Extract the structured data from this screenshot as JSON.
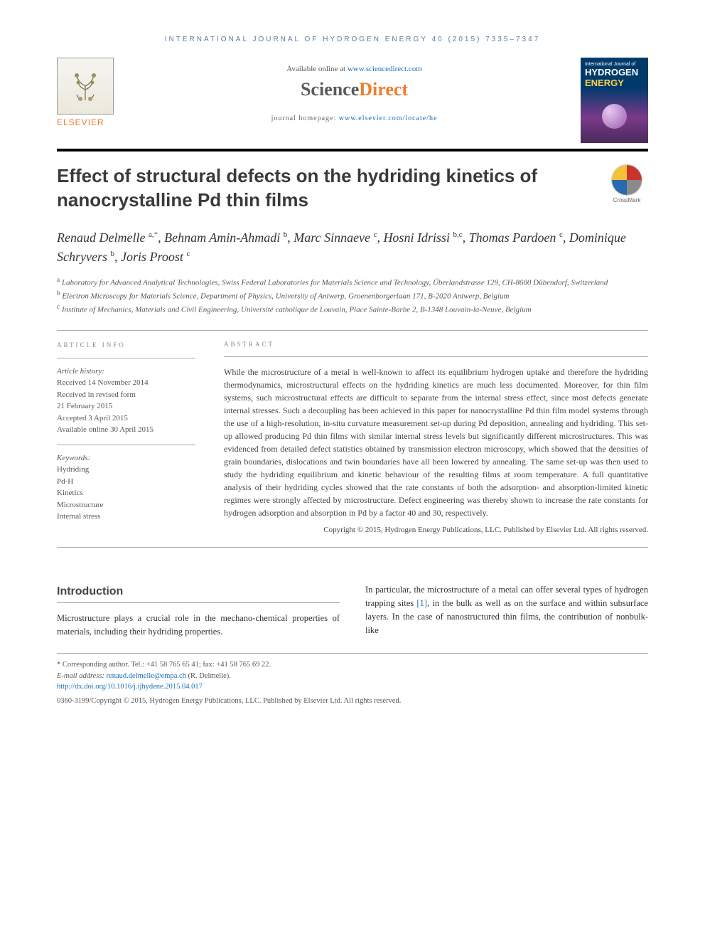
{
  "header": {
    "journal_line": "INTERNATIONAL JOURNAL OF HYDROGEN ENERGY 40 (2015) 7335–7347",
    "available_prefix": "Available online at ",
    "available_url": "www.sciencedirect.com",
    "sd_sci": "Science",
    "sd_direct": "Direct",
    "homepage_prefix": "journal homepage: ",
    "homepage_url": "www.elsevier.com/locate/he",
    "elsevier": "ELSEVIER",
    "cover_line1": "International Journal of",
    "cover_line2": "HYDROGEN",
    "cover_line3": "ENERGY",
    "crossmark": "CrossMark"
  },
  "title": "Effect of structural defects on the hydriding kinetics of nanocrystalline Pd thin films",
  "authors_html": "Renaud Delmelle <sup>a,</sup><sup class=\"ast\">*</sup>, Behnam Amin-Ahmadi <sup>b</sup>, Marc Sinnaeve <sup>c</sup>, Hosni Idrissi <sup>b,c</sup>, Thomas Pardoen <sup>c</sup>, Dominique Schryvers <sup>b</sup>, Joris Proost <sup>c</sup>",
  "affiliations": {
    "a": "Laboratory for Advanced Analytical Technologies, Swiss Federal Laboratories for Materials Science and Technology, Überlandstrasse 129, CH-8600 Dübendorf, Switzerland",
    "b": "Electron Microscopy for Materials Science, Department of Physics, University of Antwerp, Groenenborgerlaan 171, B-2020 Antwerp, Belgium",
    "c": "Institute of Mechanics, Materials and Civil Engineering, Université catholique de Louvain, Place Sainte-Barbe 2, B-1348 Louvain-la-Neuve, Belgium"
  },
  "info": {
    "heading": "ARTICLE INFO",
    "hist_label": "Article history:",
    "received": "Received 14 November 2014",
    "revised1": "Received in revised form",
    "revised2": "21 February 2015",
    "accepted": "Accepted 3 April 2015",
    "online": "Available online 30 April 2015",
    "kw_label": "Keywords:",
    "kw": [
      "Hydriding",
      "Pd-H",
      "Kinetics",
      "Microstructure",
      "Internal stress"
    ]
  },
  "abstract": {
    "heading": "ABSTRACT",
    "text": "While the microstructure of a metal is well-known to affect its equilibrium hydrogen uptake and therefore the hydriding thermodynamics, microstructural effects on the hydriding kinetics are much less documented. Moreover, for thin film systems, such microstructural effects are difficult to separate from the internal stress effect, since most defects generate internal stresses. Such a decoupling has been achieved in this paper for nanocrystalline Pd thin film model systems through the use of a high-resolution, in-situ curvature measurement set-up during Pd deposition, annealing and hydriding. This set-up allowed producing Pd thin films with similar internal stress levels but significantly different microstructures. This was evidenced from detailed defect statistics obtained by transmission electron microscopy, which showed that the densities of grain boundaries, dislocations and twin boundaries have all been lowered by annealing. The same set-up was then used to study the hydriding equilibrium and kinetic behaviour of the resulting films at room temperature. A full quantitative analysis of their hydriding cycles showed that the rate constants of both the adsorption- and absorption-limited kinetic regimes were strongly affected by microstructure. Defect engineering was thereby shown to increase the rate constants for hydrogen adsorption and absorption in Pd by a factor 40 and 30, respectively.",
    "copyright": "Copyright © 2015, Hydrogen Energy Publications, LLC. Published by Elsevier Ltd. All rights reserved."
  },
  "body": {
    "section": "Introduction",
    "left": "Microstructure plays a crucial role in the mechano-chemical properties of materials, including their hydriding properties.",
    "right": "In particular, the microstructure of a metal can offer several types of hydrogen trapping sites [1], in the bulk as well as on the surface and within subsurface layers. In the case of nanostructured thin films, the contribution of nonbulk-like"
  },
  "footer": {
    "corr": "* Corresponding author. Tel.: +41 58 765 65 41; fax: +41 58 765 69 22.",
    "email_label": "E-mail address: ",
    "email": "renaud.delmelle@empa.ch",
    "email_suffix": " (R. Delmelle).",
    "doi": "http://dx.doi.org/10.1016/j.ijhydene.2015.04.017",
    "copyright": "0360-3199/Copyright © 2015, Hydrogen Energy Publications, LLC. Published by Elsevier Ltd. All rights reserved."
  },
  "colors": {
    "link": "#1a6fb8",
    "orange": "#ee7d2d",
    "text": "#333333",
    "muted": "#555555"
  }
}
